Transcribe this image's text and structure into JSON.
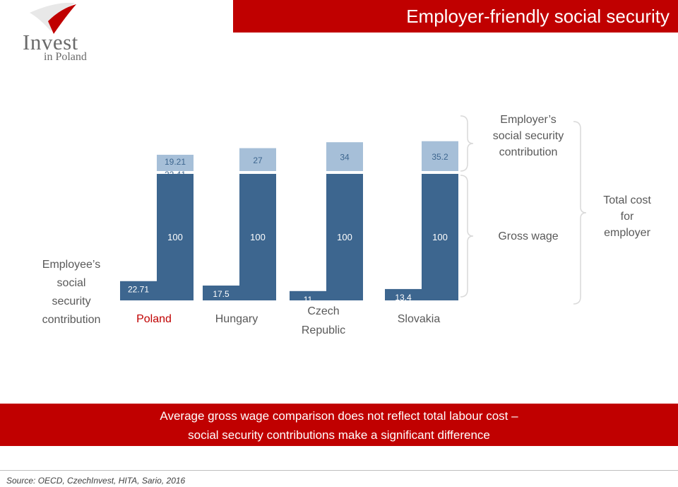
{
  "header": {
    "title": "Employer-friendly social security"
  },
  "logo": {
    "word": "Invest",
    "sub": "in Poland"
  },
  "labels": {
    "employee": [
      "Employee’s",
      "social",
      "security",
      "contribution"
    ],
    "employer": [
      "Employer’s",
      "social security",
      "contribution"
    ],
    "gross": "Gross wage",
    "total": [
      "Total cost",
      "for",
      "employer"
    ]
  },
  "chart_data": {
    "type": "bar",
    "categories": [
      {
        "name": [
          "Poland"
        ],
        "color": "#c00000"
      },
      {
        "name": [
          "Hungary"
        ],
        "color": "#595959"
      },
      {
        "name": [
          "Czech",
          "Republic"
        ],
        "color": "#595959"
      },
      {
        "name": [
          "Slovakia"
        ],
        "color": "#595959"
      }
    ],
    "series": [
      {
        "name": "Employer’s social security contribution",
        "color": "#a6bfd8",
        "values": [
          19.21,
          27,
          34,
          35.2
        ],
        "labels": [
          [
            "19.21",
            "22.41"
          ],
          [
            "27"
          ],
          [
            "34"
          ],
          [
            "35.2"
          ]
        ]
      },
      {
        "name": "Gross wage",
        "color": "#3d668f",
        "values": [
          100,
          100,
          100,
          100
        ],
        "labels": [
          [
            "100"
          ],
          [
            "100"
          ],
          [
            "100"
          ],
          [
            "100"
          ]
        ]
      },
      {
        "name": "Employee’s social security contribution",
        "color": "#3d668f",
        "values": [
          22.71,
          17.5,
          11,
          13.4
        ],
        "labels": [
          [
            "22.71"
          ],
          [
            "17.5"
          ],
          [
            "11"
          ],
          [
            "13,4"
          ]
        ]
      }
    ]
  },
  "footer": {
    "line1": "Average gross wage comparison does not reflect total labour cost –",
    "line2": "social security contributions make a significant difference"
  },
  "source": "Source: OECD, CzechInvest, HITA, Sario, 2016"
}
